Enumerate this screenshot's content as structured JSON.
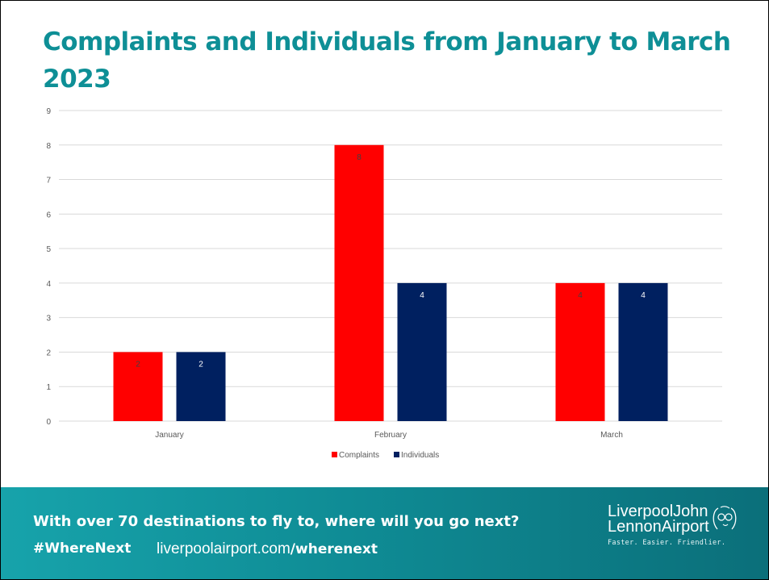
{
  "slide": {
    "title": "Complaints and Individuals from January to March 2023"
  },
  "chart_data": {
    "type": "bar",
    "title": "",
    "xlabel": "",
    "ylabel": "",
    "categories": [
      "January",
      "February",
      "March"
    ],
    "series": [
      {
        "name": "Complaints",
        "values": [
          2,
          8,
          4
        ],
        "color": "#ff0000"
      },
      {
        "name": "Individuals",
        "values": [
          2,
          4,
          4
        ],
        "color": "#002060"
      }
    ],
    "ylim": [
      0,
      9
    ],
    "yticks": [
      0,
      1,
      2,
      3,
      4,
      5,
      6,
      7,
      8,
      9
    ],
    "grid": true,
    "legend": "bottom",
    "data_labels": true
  },
  "footer": {
    "tagline": "With over 70 destinations to fly to, where will you go next?",
    "hashtag": "#WhereNext",
    "url_base": "liverpoolairport.com",
    "url_path": "/wherenext",
    "logo_line1": "LiverpoolJohn",
    "logo_line2": "LennonAirport",
    "logo_slogan": "Faster. Easier. Friendlier.",
    "logo_icon": "john-lennon-glasses-icon"
  }
}
